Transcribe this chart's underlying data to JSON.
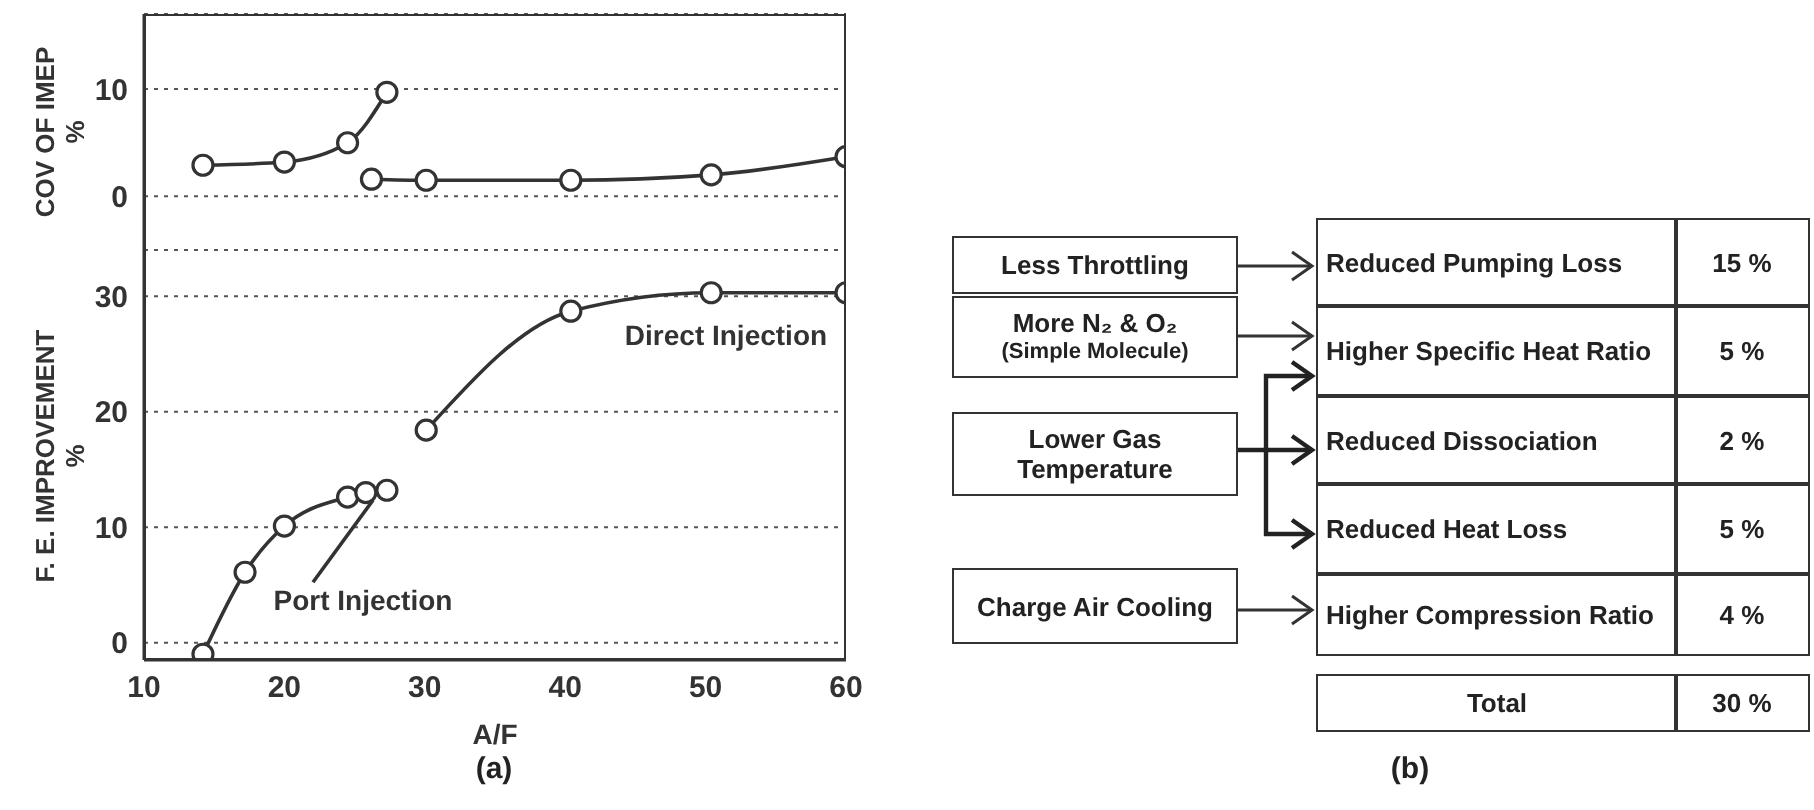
{
  "chart_data": [
    {
      "type": "line",
      "ylabel": "COV OF IMEP %",
      "xlim": [
        10,
        60
      ],
      "ylim": [
        -5,
        17
      ],
      "yticks": [
        0,
        10
      ],
      "grid": "y",
      "marker": "circle",
      "line_style": "solid",
      "tick_labels": "y",
      "series": [
        {
          "color": "#333333",
          "x": [
            14.2,
            20,
            24.5,
            27.3
          ],
          "values": [
            2.9,
            3.2,
            5,
            9.7
          ]
        },
        {
          "color": "#333333",
          "x": [
            26.2,
            30.1,
            40.4,
            50.4,
            60
          ],
          "values": [
            1.6,
            1.5,
            1.5,
            2,
            3.7
          ]
        }
      ]
    },
    {
      "type": "line",
      "ylabel": "F. E. IMPROVEMENT %",
      "xlabel": "A/F",
      "xlim": [
        10,
        60
      ],
      "ylim": [
        -1.5,
        34
      ],
      "xticks": [
        10,
        20,
        30,
        40,
        50,
        60
      ],
      "yticks": [
        0,
        10,
        20,
        30
      ],
      "grid": "y",
      "marker": "circle",
      "line_style": "solid",
      "annotations": [
        "(a)"
      ],
      "series": [
        {
          "name": "Port Injection",
          "color": "#333333",
          "x": [
            14.2,
            17.2,
            20,
            24.5,
            25.8,
            27.3
          ],
          "values": [
            -1,
            6.1,
            10.1,
            12.6,
            13,
            13.2
          ]
        },
        {
          "name": "Direct Injection",
          "color": "#333333",
          "x": [
            30.1,
            40.4,
            50.4,
            60
          ],
          "values": [
            18.4,
            28.7,
            30.3,
            30.3
          ]
        }
      ]
    },
    {
      "type": "other",
      "annotations": [
        "Less Throttling",
        "More N₂ & O₂",
        "(Simple Molecule)",
        "Lower Gas Temperature",
        "Charge Air Cooling",
        "Reduced Pumping Loss",
        "15 %",
        "Higher Specific Heat Ratio",
        "5 %",
        "Reduced Dissociation",
        "2 %",
        "Reduced Heat Loss",
        "5 %",
        "Higher Compression Ratio",
        "4 %",
        "Total",
        "30 %",
        "(b)"
      ]
    }
  ]
}
